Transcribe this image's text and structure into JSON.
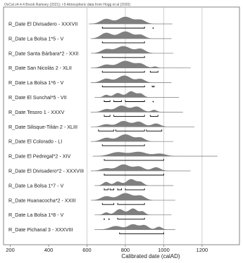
{
  "chart_data": {
    "type": "range_plot",
    "header": "OxCal v4.4.4 Bronk Ramsey (2021); r:5 Atmospheric data from Hogg et al (2020)",
    "xlabel": "Calibrated date (calAD)",
    "xlim": [
      165,
      1395
    ],
    "xticks": [
      200,
      400,
      600,
      800,
      1000,
      1200
    ],
    "gridlines": [
      600,
      800,
      1000,
      1200
    ],
    "grid": true,
    "colors": {
      "dist": "#808080",
      "axis": "#666666",
      "grid": "#bbbbbb",
      "bracket": "#000000"
    },
    "series": [
      {
        "label": "R_Date El Divisadero - XXXVII",
        "range": [
          610,
          1045
        ],
        "peaks": [
          {
            "c": 700,
            "h": 0.7,
            "w": 28
          },
          {
            "c": 800,
            "h": 1.0,
            "w": 35
          },
          {
            "c": 880,
            "h": 0.55,
            "w": 25
          }
        ],
        "brackets": [
          [
            680,
            900
          ]
        ],
        "dots": [
          945
        ]
      },
      {
        "label": "R_Date La Bolsa 1*5 - V",
        "range": [
          620,
          1040
        ],
        "peaks": [
          {
            "c": 700,
            "h": 0.8,
            "w": 28
          },
          {
            "c": 800,
            "h": 1.0,
            "w": 35
          },
          {
            "c": 880,
            "h": 0.5,
            "w": 22
          }
        ],
        "brackets": [
          [
            680,
            900
          ]
        ],
        "dots": []
      },
      {
        "label": "R_Date Santa Bárbara*2 - XXII",
        "range": [
          620,
          1050
        ],
        "peaks": [
          {
            "c": 700,
            "h": 0.55,
            "w": 26
          },
          {
            "c": 790,
            "h": 1.0,
            "w": 38
          },
          {
            "c": 880,
            "h": 0.6,
            "w": 24
          }
        ],
        "brackets": [
          [
            680,
            900
          ]
        ],
        "dots": []
      },
      {
        "label": "R_Date San Nicolás 2 - XLII",
        "range": [
          620,
          1140
        ],
        "peaks": [
          {
            "c": 700,
            "h": 0.45,
            "w": 26
          },
          {
            "c": 800,
            "h": 1.0,
            "w": 38
          },
          {
            "c": 880,
            "h": 0.55,
            "w": 24
          },
          {
            "c": 955,
            "h": 0.2,
            "w": 12
          }
        ],
        "brackets": [
          [
            680,
            900
          ],
          [
            930,
            970
          ]
        ],
        "dots": []
      },
      {
        "label": "R_Date La Bolsa 1*6 - V",
        "range": [
          620,
          1040
        ],
        "peaks": [
          {
            "c": 700,
            "h": 0.55,
            "w": 26
          },
          {
            "c": 795,
            "h": 1.0,
            "w": 34
          },
          {
            "c": 880,
            "h": 0.5,
            "w": 22
          }
        ],
        "brackets": [
          [
            680,
            900
          ],
          [
            940,
            950
          ]
        ],
        "dots": []
      },
      {
        "label": "R_Date El Sunchal*5 - VII",
        "range": [
          640,
          1080
        ],
        "peaks": [
          {
            "c": 700,
            "h": 0.35,
            "w": 14
          },
          {
            "c": 760,
            "h": 0.6,
            "w": 20
          },
          {
            "c": 830,
            "h": 0.85,
            "w": 22
          },
          {
            "c": 880,
            "h": 0.5,
            "w": 16
          }
        ],
        "brackets": [
          [
            690,
            720
          ],
          [
            740,
            780
          ],
          [
            800,
            900
          ]
        ],
        "dots": [
          945
        ]
      },
      {
        "label": "R_Date Tesoro 1 - XXXV",
        "range": [
          620,
          1100
        ],
        "peaks": [
          {
            "c": 700,
            "h": 0.4,
            "w": 22
          },
          {
            "c": 780,
            "h": 0.9,
            "w": 30
          },
          {
            "c": 860,
            "h": 0.75,
            "w": 26
          },
          {
            "c": 950,
            "h": 0.3,
            "w": 14
          }
        ],
        "brackets": [
          [
            690,
            720
          ],
          [
            740,
            900
          ],
          [
            930,
            970
          ]
        ],
        "dots": []
      },
      {
        "label": "R_Date Silisque-Tilián 2 - XLIII",
        "range": [
          620,
          1160
        ],
        "peaks": [
          {
            "c": 700,
            "h": 0.35,
            "w": 24
          },
          {
            "c": 790,
            "h": 0.8,
            "w": 30
          },
          {
            "c": 870,
            "h": 0.7,
            "w": 26
          },
          {
            "c": 960,
            "h": 0.45,
            "w": 22
          }
        ],
        "brackets": [
          [
            660,
            740
          ],
          [
            750,
            900
          ],
          [
            910,
            990
          ]
        ],
        "dots": []
      },
      {
        "label": "R_Date El Colorado - LI",
        "range": [
          620,
          1050
        ],
        "peaks": [
          {
            "c": 700,
            "h": 0.5,
            "w": 26
          },
          {
            "c": 800,
            "h": 1.0,
            "w": 36
          },
          {
            "c": 880,
            "h": 0.5,
            "w": 22
          }
        ],
        "brackets": [
          [
            680,
            900
          ]
        ],
        "dots": []
      },
      {
        "label": "R_Date El Pedregal*2 - XIV",
        "range": [
          630,
          1280
        ],
        "peaks": [
          {
            "c": 760,
            "h": 0.55,
            "w": 40
          },
          {
            "c": 870,
            "h": 0.6,
            "w": 40
          },
          {
            "c": 980,
            "h": 0.35,
            "w": 30
          }
        ],
        "brackets": [
          [
            690,
            1000
          ]
        ],
        "dots": []
      },
      {
        "label": "R_Date El Divisadero*2 - XXXVIII",
        "range": [
          620,
          1140
        ],
        "peaks": [
          {
            "c": 700,
            "h": 0.35,
            "w": 26
          },
          {
            "c": 790,
            "h": 0.9,
            "w": 32
          },
          {
            "c": 870,
            "h": 0.6,
            "w": 26
          },
          {
            "c": 960,
            "h": 0.5,
            "w": 22
          }
        ],
        "brackets": [
          [
            690,
            1000
          ]
        ],
        "dots": []
      },
      {
        "label": "R_Date La Bolsa 1*7 - V",
        "range": [
          640,
          1050
        ],
        "peaks": [
          {
            "c": 700,
            "h": 0.5,
            "w": 16
          },
          {
            "c": 760,
            "h": 0.55,
            "w": 18
          },
          {
            "c": 830,
            "h": 0.9,
            "w": 24
          },
          {
            "c": 880,
            "h": 0.45,
            "w": 16
          }
        ],
        "brackets": [
          [
            690,
            710
          ],
          [
            720,
            740
          ],
          [
            760,
            780
          ],
          [
            800,
            900
          ]
        ],
        "dots": []
      },
      {
        "label": "R_Date Huanacocha*2 - XXIII",
        "range": [
          620,
          1060
        ],
        "peaks": [
          {
            "c": 700,
            "h": 0.55,
            "w": 26
          },
          {
            "c": 800,
            "h": 1.0,
            "w": 36
          },
          {
            "c": 880,
            "h": 0.6,
            "w": 24
          }
        ],
        "brackets": [
          [
            680,
            740
          ],
          [
            760,
            900
          ]
        ],
        "dots": []
      },
      {
        "label": "R_Date La Bolsa 1*8 - V",
        "range": [
          640,
          1040
        ],
        "peaks": [
          {
            "c": 700,
            "h": 0.35,
            "w": 14
          },
          {
            "c": 770,
            "h": 0.8,
            "w": 22
          },
          {
            "c": 840,
            "h": 0.9,
            "w": 22
          },
          {
            "c": 890,
            "h": 0.45,
            "w": 14
          }
        ],
        "brackets": [
          [
            760,
            900
          ]
        ],
        "dots": [
          690,
          715
        ]
      },
      {
        "label": "R_Date Pichanal 3 - XXXVIII",
        "range": [
          640,
          1060
        ],
        "peaks": [
          {
            "c": 750,
            "h": 0.5,
            "w": 30
          },
          {
            "c": 840,
            "h": 0.75,
            "w": 26
          },
          {
            "c": 900,
            "h": 0.6,
            "w": 20
          },
          {
            "c": 975,
            "h": 0.4,
            "w": 16
          }
        ],
        "brackets": [
          [
            770,
            1000
          ]
        ],
        "dots": []
      }
    ]
  }
}
